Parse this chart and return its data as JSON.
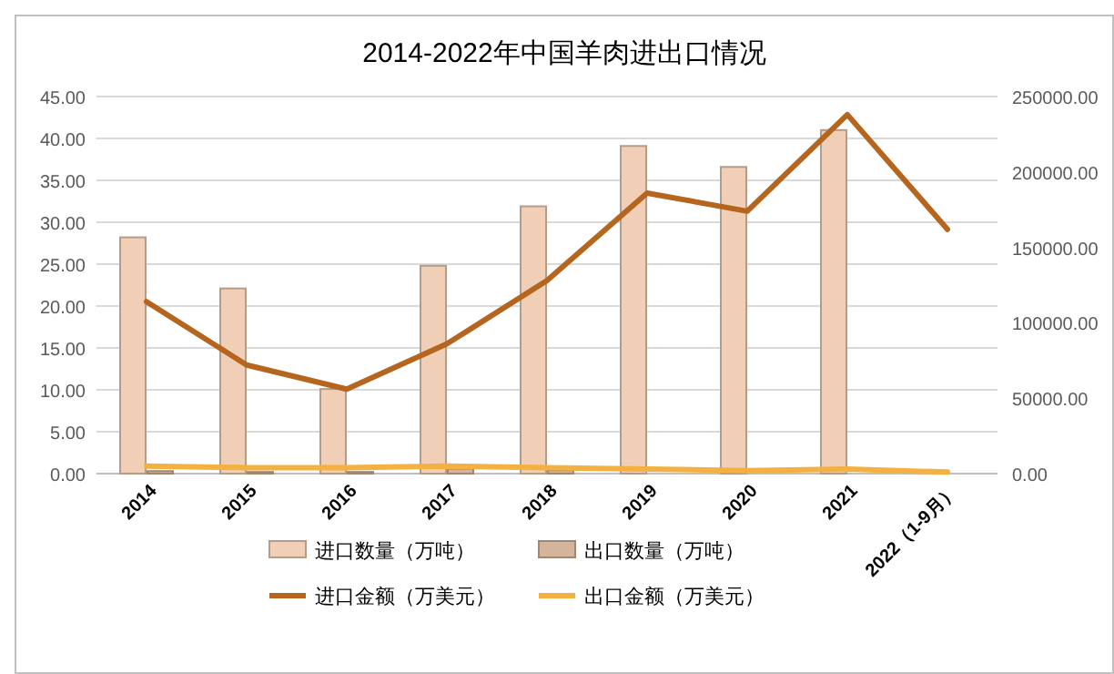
{
  "chart_data": {
    "type": "bar",
    "title": "2014-2022年中国羊肉进出口情况",
    "categories": [
      "2014",
      "2015",
      "2016",
      "2017",
      "2018",
      "2019",
      "2020",
      "2021",
      "2022（1-9月）"
    ],
    "series": [
      {
        "name": "进口数量（万吨）",
        "color": "#f0cfb6",
        "values": [
          28.2,
          22.1,
          10.1,
          24.8,
          31.9,
          39.1,
          36.6,
          41.0,
          null
        ]
      },
      {
        "name": "出口数量（万吨）",
        "color": "#d4b49a",
        "values": [
          0.3,
          0.2,
          0.2,
          0.6,
          0.4,
          null,
          null,
          null,
          null
        ]
      },
      {
        "name": "进口金额（万美元）",
        "type": "line",
        "axis": "y2",
        "color": "#b5651d",
        "values": [
          114000,
          72000,
          56000,
          86000,
          128000,
          186000,
          174000,
          238000,
          162000
        ]
      },
      {
        "name": "出口金额（万美元）",
        "type": "line",
        "axis": "y2",
        "color": "#f4b041",
        "values": [
          5000,
          4000,
          4000,
          5000,
          4000,
          3000,
          2000,
          3000,
          1000
        ]
      }
    ],
    "ylim": [
      0,
      45
    ],
    "yticks": [
      {
        "value": 0,
        "label": "0.00"
      },
      {
        "value": 5,
        "label": "5.00"
      },
      {
        "value": 10,
        "label": "10.00"
      },
      {
        "value": 15,
        "label": "15.00"
      },
      {
        "value": 20,
        "label": "20.00"
      },
      {
        "value": 25,
        "label": "25.00"
      },
      {
        "value": 30,
        "label": "30.00"
      },
      {
        "value": 35,
        "label": "35.00"
      },
      {
        "value": 40,
        "label": "40.00"
      },
      {
        "value": 45,
        "label": "45.00"
      }
    ],
    "y2lim": [
      0,
      250000
    ],
    "y2ticks": [
      {
        "value": 0,
        "label": "0.00"
      },
      {
        "value": 50000,
        "label": "50000.00"
      },
      {
        "value": 100000,
        "label": "100000.00"
      },
      {
        "value": 150000,
        "label": "150000.00"
      },
      {
        "value": 200000,
        "label": "200000.00"
      },
      {
        "value": 250000,
        "label": "250000.00"
      }
    ],
    "grid": "y",
    "legend": "bottom"
  }
}
